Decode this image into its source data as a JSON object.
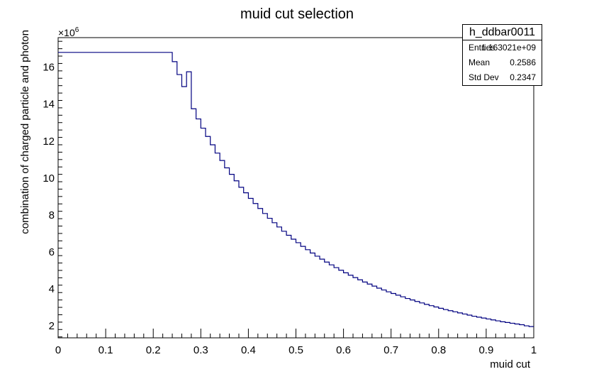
{
  "chart_data": {
    "type": "histogram",
    "title": "muid cut selection",
    "xlabel": "muid cut",
    "ylabel": "combination of charged particle and photon",
    "y_multiplier": "×10",
    "y_multiplier_exp": "6",
    "xlim": [
      0,
      1
    ],
    "ylim": [
      1.35,
      17.6
    ],
    "x_ticks": [
      "0",
      "0.1",
      "0.2",
      "0.3",
      "0.4",
      "0.5",
      "0.6",
      "0.7",
      "0.8",
      "0.9",
      "1"
    ],
    "x_tick_values": [
      0,
      0.1,
      0.2,
      0.3,
      0.4,
      0.5,
      0.6,
      0.7,
      0.8,
      0.9,
      1
    ],
    "y_ticks": [
      "2",
      "4",
      "6",
      "8",
      "10",
      "12",
      "14",
      "16"
    ],
    "y_tick_values": [
      2,
      4,
      6,
      8,
      10,
      12,
      14,
      16
    ],
    "line_color": "#000080",
    "bin_width": 0.01,
    "values": [
      16.8,
      16.8,
      16.8,
      16.8,
      16.8,
      16.8,
      16.8,
      16.8,
      16.8,
      16.8,
      16.8,
      16.8,
      16.8,
      16.8,
      16.8,
      16.8,
      16.8,
      16.8,
      16.8,
      16.8,
      16.8,
      16.8,
      16.8,
      16.8,
      16.3,
      15.6,
      14.95,
      15.75,
      13.75,
      13.2,
      12.7,
      12.25,
      11.8,
      11.35,
      10.95,
      10.55,
      10.2,
      9.85,
      9.5,
      9.2,
      8.9,
      8.62,
      8.35,
      8.08,
      7.82,
      7.58,
      7.35,
      7.12,
      6.9,
      6.69,
      6.5,
      6.3,
      6.12,
      5.94,
      5.77,
      5.61,
      5.45,
      5.3,
      5.15,
      5.01,
      4.87,
      4.74,
      4.61,
      4.49,
      4.37,
      4.26,
      4.15,
      4.04,
      3.94,
      3.84,
      3.75,
      3.66,
      3.57,
      3.48,
      3.4,
      3.32,
      3.24,
      3.16,
      3.09,
      3.02,
      2.95,
      2.88,
      2.82,
      2.76,
      2.7,
      2.64,
      2.58,
      2.52,
      2.47,
      2.42,
      2.37,
      2.32,
      2.27,
      2.22,
      2.18,
      2.14,
      2.1,
      2.06,
      2.0,
      1.96
    ]
  },
  "stats_box": {
    "title": "h_ddbar0011",
    "rows": [
      {
        "label": "Entries",
        "value": "1.163021e+09"
      },
      {
        "label": "Mean",
        "value": "0.2586"
      },
      {
        "label": "Std Dev",
        "value": "0.2347"
      }
    ]
  }
}
